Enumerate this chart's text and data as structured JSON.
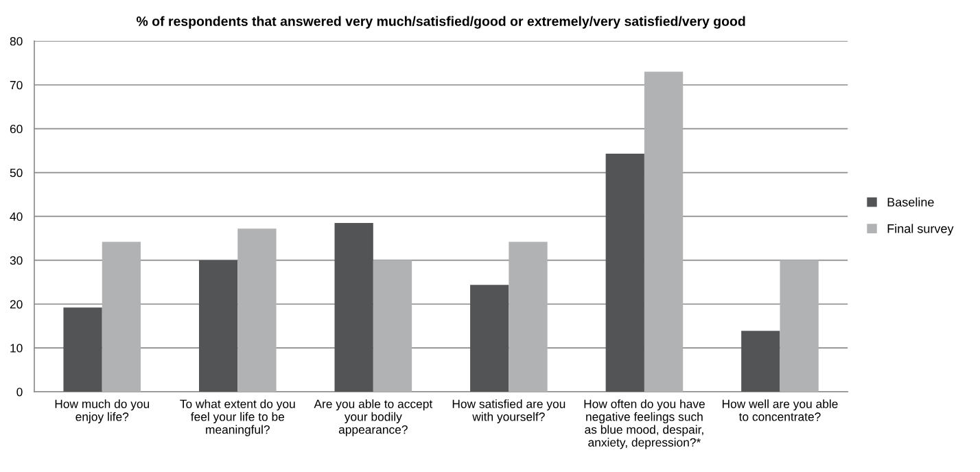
{
  "chart_data": {
    "type": "bar",
    "title": "% of respondents that answered very much/satisfied/good or extremely/very satisfied/very good",
    "categories": [
      "How much do you\nenjoy life?",
      "To what extent do you\nfeel your life to be\nmeaningful?",
      "Are you able to accept\nyour bodily\nappearance?",
      "How satisfied are you\nwith yourself?",
      "How often do you have\nnegative feelings such\nas blue mood, despair,\nanxiety, depression?*",
      "How well are you able\nto concentrate?"
    ],
    "series": [
      {
        "name": "Baseline",
        "color": "#525456",
        "values": [
          19.2,
          30.0,
          38.5,
          24.4,
          54.3,
          13.9
        ]
      },
      {
        "name": "Final survey",
        "color": "#b0b2b4",
        "values": [
          34.2,
          37.2,
          30.0,
          34.2,
          73.0,
          30.0
        ]
      }
    ],
    "ylim": [
      0,
      80
    ],
    "yticks": [
      0,
      10,
      20,
      30,
      40,
      50,
      60,
      70,
      80
    ],
    "grid": "y",
    "legend": "right"
  }
}
